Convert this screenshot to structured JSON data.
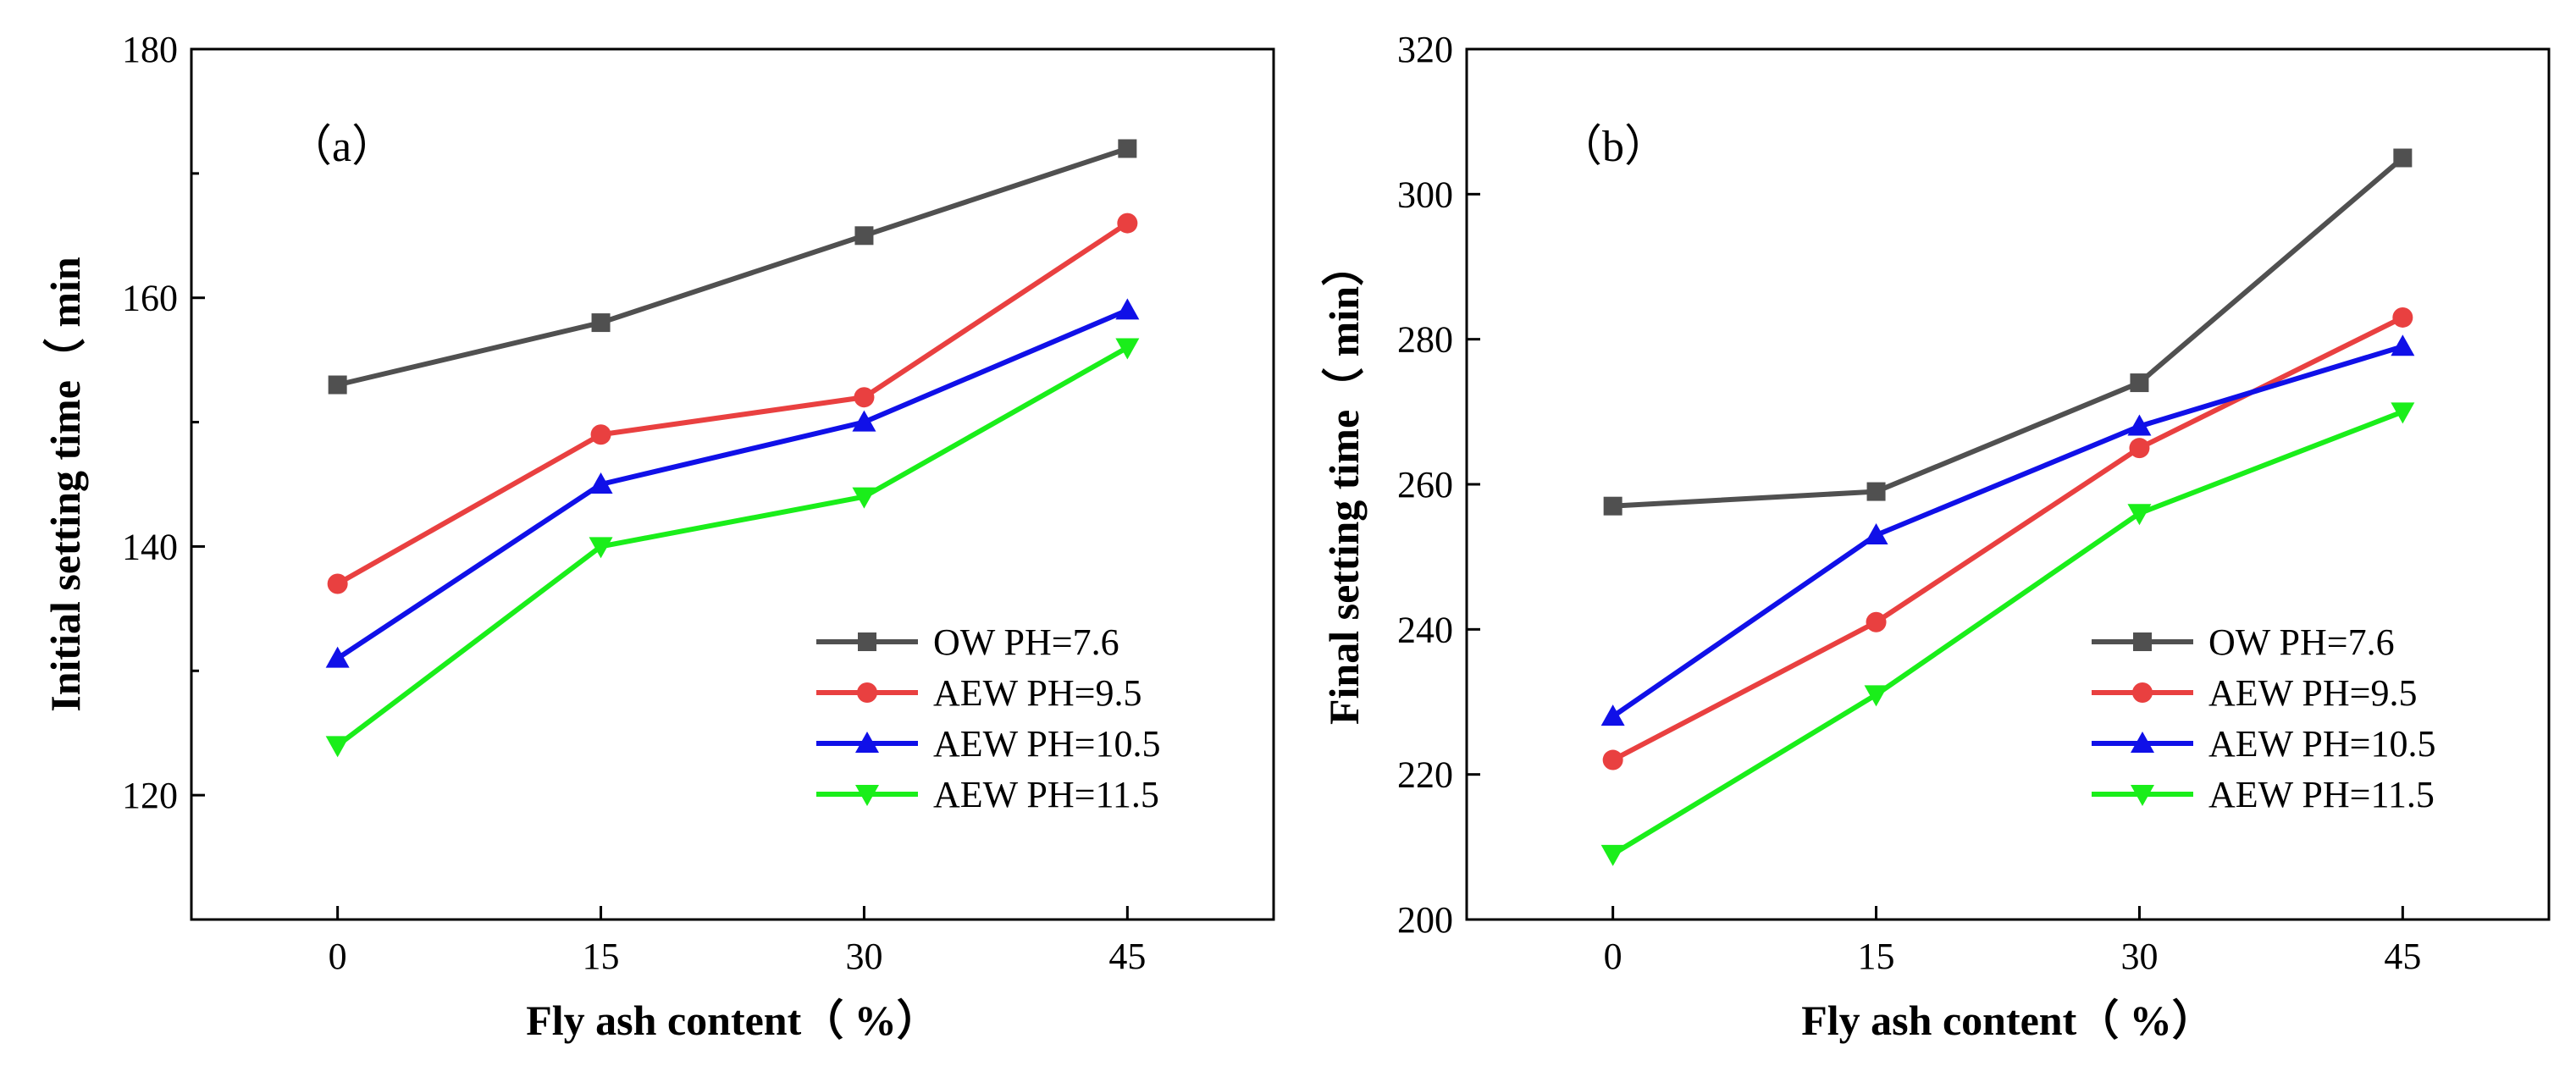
{
  "chart_data": [
    {
      "type": "line",
      "panel_label": "（a）",
      "title": "",
      "xlabel": "Fly ash content（ %）",
      "ylabel": "Initial setting time（ min",
      "categories": [
        "0",
        "15",
        "30",
        "45"
      ],
      "x": [
        0,
        15,
        30,
        45
      ],
      "xlim": [
        -8.33,
        53.33
      ],
      "ylim": [
        110,
        180
      ],
      "yticks": [
        120,
        140,
        160,
        180
      ],
      "yticks_minor": [
        130,
        150,
        170
      ],
      "grid": false,
      "legend_position": "bottom-right",
      "series": [
        {
          "name": "OW   PH=7.6",
          "color": "#505050",
          "marker": "square",
          "values": [
            153,
            158,
            165,
            172
          ]
        },
        {
          "name": "AEW PH=9.5",
          "color": "#e94040",
          "marker": "circle",
          "values": [
            137,
            149,
            152,
            166
          ]
        },
        {
          "name": "AEW PH=10.5",
          "color": "#1010e8",
          "marker": "triangle-up",
          "values": [
            131,
            145,
            150,
            159
          ]
        },
        {
          "name": "AEW PH=11.5",
          "color": "#1aee1a",
          "marker": "triangle-down",
          "values": [
            124,
            140,
            144,
            156
          ]
        }
      ]
    },
    {
      "type": "line",
      "panel_label": "（b）",
      "title": "",
      "xlabel": "Fly ash content（ %）",
      "ylabel": "Final setting time（ min）",
      "categories": [
        "0",
        "15",
        "30",
        "45"
      ],
      "x": [
        0,
        15,
        30,
        45
      ],
      "xlim": [
        -8.33,
        53.33
      ],
      "ylim": [
        200,
        320
      ],
      "yticks": [
        200,
        220,
        240,
        260,
        280,
        300,
        320
      ],
      "yticks_minor": [],
      "grid": false,
      "legend_position": "bottom-right",
      "series": [
        {
          "name": "OW   PH=7.6",
          "color": "#505050",
          "marker": "square",
          "values": [
            257,
            259,
            274,
            305
          ]
        },
        {
          "name": "AEW PH=9.5",
          "color": "#e94040",
          "marker": "circle",
          "values": [
            222,
            241,
            265,
            283
          ]
        },
        {
          "name": "AEW PH=10.5",
          "color": "#1010e8",
          "marker": "triangle-up",
          "values": [
            228,
            253,
            268,
            279
          ]
        },
        {
          "name": "AEW PH=11.5",
          "color": "#1aee1a",
          "marker": "triangle-down",
          "values": [
            209,
            231,
            256,
            270
          ]
        }
      ]
    }
  ]
}
